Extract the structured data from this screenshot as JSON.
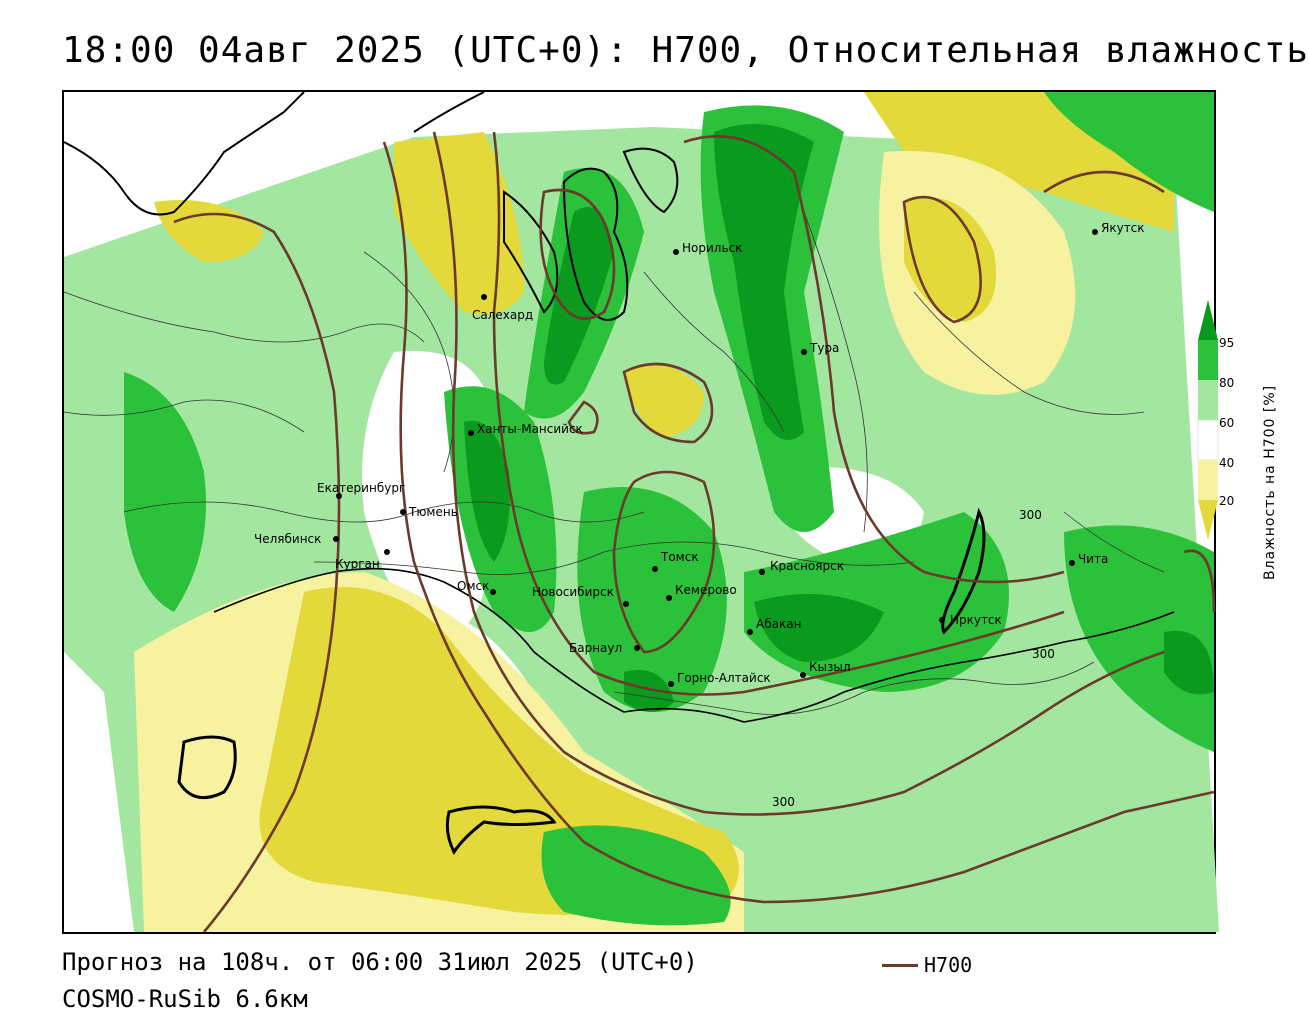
{
  "title": "18:00 04авг 2025 (UTC+0): Н700, Относительная влажность",
  "footer": {
    "forecast": "Прогноз на 108ч. от 06:00 31июл 2025 (UTC+0)",
    "model": "COSMO-RuSib 6.6км",
    "legend_line_label": "Н700"
  },
  "colorbar": {
    "title": "Влажность на Н700 [%]",
    "ticks": [
      "95",
      "80",
      "60",
      "40",
      "20"
    ],
    "colors": {
      "dark_green": "#0a9a1e",
      "green": "#2cc13a",
      "light_green": "#a3e6a0",
      "white": "#ffffff",
      "light_yellow": "#f7f2a0",
      "yellow": "#e3d93a"
    }
  },
  "contour": {
    "color": "#6b3a2a",
    "labels": [
      "300",
      "300",
      "300"
    ]
  },
  "cities": [
    {
      "name": "Норильск"
    },
    {
      "name": "Якутск"
    },
    {
      "name": "Салехард"
    },
    {
      "name": "Тура"
    },
    {
      "name": "Ханты-Мансийск"
    },
    {
      "name": "Екатеринбург"
    },
    {
      "name": "Тюмень"
    },
    {
      "name": "Челябинск"
    },
    {
      "name": "Курган"
    },
    {
      "name": "Томск"
    },
    {
      "name": "Красноярск"
    },
    {
      "name": "Омск"
    },
    {
      "name": "Новосибирск"
    },
    {
      "name": "Кемерово"
    },
    {
      "name": "Чита"
    },
    {
      "name": "Абакан"
    },
    {
      "name": "Иркутск"
    },
    {
      "name": "Барнаул"
    },
    {
      "name": "Кызыл"
    },
    {
      "name": "Горно-Алтайск"
    }
  ]
}
